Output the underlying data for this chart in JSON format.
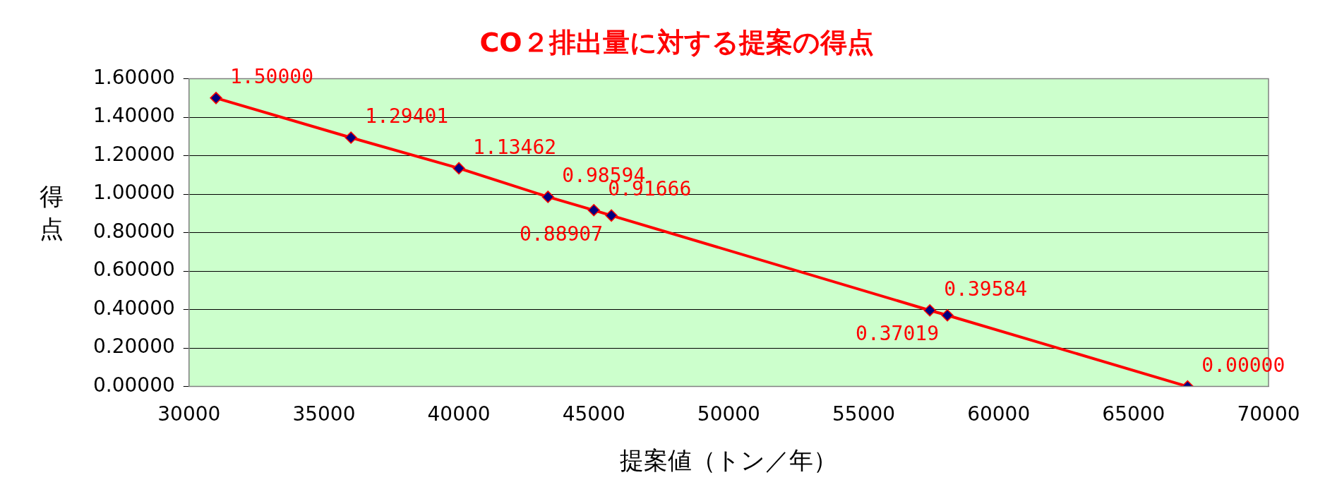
{
  "chart_data": {
    "type": "line",
    "title": "CO２排出量に対する提案の得点",
    "xlabel": "提案値（トン／年）",
    "ylabel": "得点",
    "x": [
      31000,
      36000,
      40000,
      43300,
      45000,
      45650,
      57450,
      58100,
      67000
    ],
    "series": [
      {
        "color": "#ff0000",
        "values": [
          1.5,
          1.29401,
          1.13462,
          0.98594,
          0.91666,
          0.88907,
          0.39584,
          0.37019,
          0.0
        ]
      }
    ],
    "value_labels": [
      "1.50000",
      "1.29401",
      "1.13462",
      "0.98594",
      "0.91666",
      "0.88907",
      "0.39584",
      "0.37019",
      "0.00000"
    ],
    "xlim": [
      30000,
      70000
    ],
    "xticks": [
      30000,
      35000,
      40000,
      45000,
      50000,
      55000,
      60000,
      65000,
      70000
    ],
    "ylim": [
      0,
      1.6
    ],
    "yticks": [
      {
        "value": 0,
        "label": "0.00000"
      },
      {
        "value": 0.2,
        "label": "0.20000"
      },
      {
        "value": 0.4,
        "label": "0.40000"
      },
      {
        "value": 0.6,
        "label": "0.60000"
      },
      {
        "value": 0.8,
        "label": "0.80000"
      },
      {
        "value": 1.0,
        "label": "1.00000"
      },
      {
        "value": 1.2,
        "label": "1.20000"
      },
      {
        "value": 1.4,
        "label": "1.40000"
      },
      {
        "value": 1.6,
        "label": "1.60000"
      }
    ],
    "grid": "y",
    "legend": false,
    "marker": "diamond",
    "line_style": "solid"
  }
}
